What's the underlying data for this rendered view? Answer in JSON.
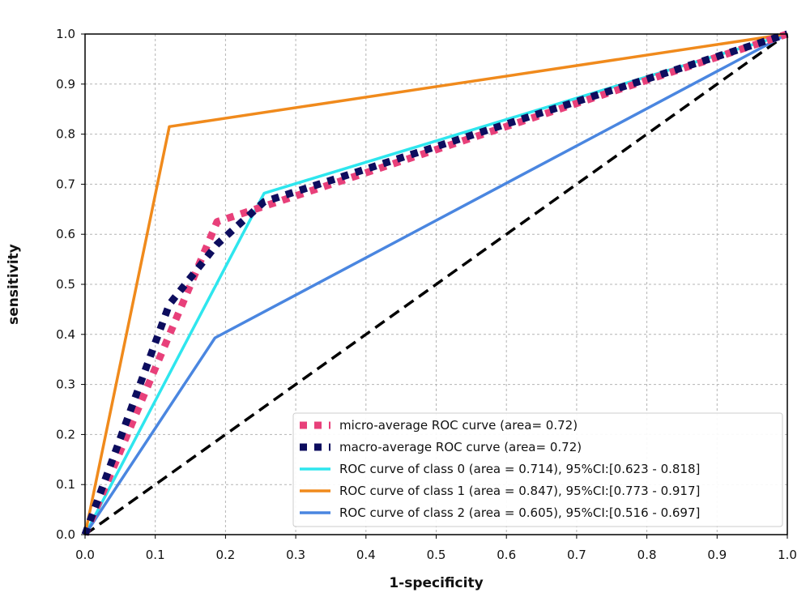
{
  "chart_data": {
    "type": "line",
    "title": "",
    "xlabel": "1-specificity",
    "ylabel": "sensitivity",
    "xlim": [
      0.0,
      1.0
    ],
    "ylim": [
      0.0,
      1.0
    ],
    "grid": true,
    "legend_position": "lower-right",
    "x_ticks": [
      "0.0",
      "0.1",
      "0.2",
      "0.3",
      "0.4",
      "0.5",
      "0.6",
      "0.7",
      "0.8",
      "0.9",
      "1.0"
    ],
    "y_ticks": [
      "0.0",
      "0.1",
      "0.2",
      "0.3",
      "0.4",
      "0.5",
      "0.6",
      "0.7",
      "0.8",
      "0.9",
      "1.0"
    ],
    "series": [
      {
        "name": "micro-average ROC curve (area= 0.72)",
        "color": "#e8407a",
        "style": "dotted",
        "x": [
          0.0,
          0.188,
          1.0
        ],
        "y": [
          0.0,
          0.625,
          1.0
        ]
      },
      {
        "name": "macro-average ROC curve (area= 0.72)",
        "color": "#0d0d5e",
        "style": "dotted",
        "x": [
          0.0,
          0.12,
          0.188,
          0.255,
          1.0
        ],
        "y": [
          0.0,
          0.46,
          0.58,
          0.665,
          1.0
        ]
      },
      {
        "name": "ROC curve of class 0 (area = 0.714), 95%CI:[0.623 - 0.818]",
        "color": "#2ee6ee",
        "style": "solid",
        "x": [
          0.0,
          0.255,
          1.0
        ],
        "y": [
          0.0,
          0.682,
          1.0
        ]
      },
      {
        "name": "ROC curve of class 1 (area = 0.847), 95%CI:[0.773 - 0.917]",
        "color": "#f08a1c",
        "style": "solid",
        "x": [
          0.0,
          0.12,
          1.0
        ],
        "y": [
          0.0,
          0.815,
          1.0
        ]
      },
      {
        "name": "ROC curve of class 2 (area = 0.605), 95%CI:[0.516 - 0.697]",
        "color": "#4a86e0",
        "style": "solid",
        "x": [
          0.0,
          0.185,
          1.0
        ],
        "y": [
          0.0,
          0.393,
          1.0
        ]
      }
    ],
    "reference_line": {
      "color": "#000000",
      "style": "dashed",
      "x": [
        0.0,
        1.0
      ],
      "y": [
        0.0,
        1.0
      ]
    }
  }
}
